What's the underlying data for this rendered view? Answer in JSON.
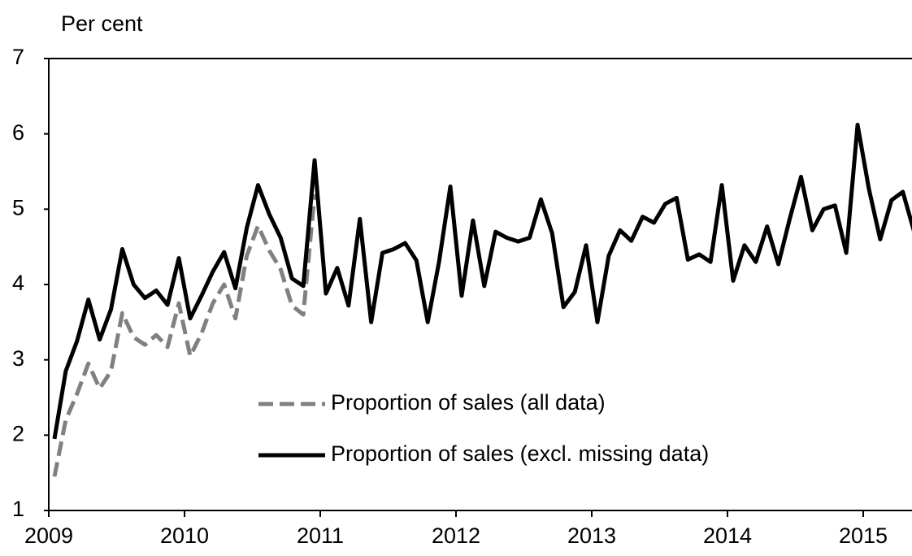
{
  "chart_data": {
    "type": "line",
    "y_label": "Per cent",
    "categories": [
      "2009",
      null,
      null,
      null,
      null,
      null,
      null,
      null,
      null,
      null,
      null,
      null,
      "2010",
      null,
      null,
      null,
      null,
      null,
      null,
      null,
      null,
      null,
      null,
      null,
      "2011",
      null,
      null,
      null,
      null,
      null,
      null,
      null,
      null,
      null,
      null,
      null,
      "2012",
      null,
      null,
      null,
      null,
      null,
      null,
      null,
      null,
      null,
      null,
      null,
      "2013",
      null,
      null,
      null,
      null,
      null,
      null,
      null,
      null,
      null,
      null,
      null,
      "2014",
      null,
      null,
      null,
      null,
      null,
      null,
      null,
      null,
      null,
      null,
      null,
      "2015",
      null,
      null,
      null,
      null
    ],
    "series": [
      {
        "name": "Proportion of sales (all data)",
        "color": "#808080",
        "dashed": true,
        "values": [
          1.45,
          2.2,
          2.55,
          2.95,
          2.62,
          2.85,
          3.62,
          3.3,
          3.2,
          3.33,
          3.17,
          3.75,
          3.05,
          3.35,
          3.75,
          4.0,
          3.55,
          4.38,
          4.78,
          4.45,
          4.2,
          3.72,
          3.6,
          5.2,
          null,
          null,
          null,
          null,
          null,
          null,
          null,
          null,
          null,
          null,
          null,
          null,
          null,
          null,
          null,
          null,
          null,
          null,
          null,
          null,
          null,
          null,
          null,
          null,
          null,
          null,
          null,
          null,
          null,
          null,
          null,
          null,
          null,
          null,
          null,
          null,
          null,
          null,
          null,
          null,
          null,
          null,
          null,
          null,
          null,
          null,
          null,
          null,
          null,
          null,
          null,
          null,
          null
        ]
      },
      {
        "name": "Proportion of sales (excl. missing data)",
        "color": "#000000",
        "dashed": false,
        "values": [
          1.95,
          2.85,
          3.25,
          3.8,
          3.27,
          3.67,
          4.47,
          4.0,
          3.82,
          3.92,
          3.73,
          4.35,
          3.55,
          3.85,
          4.17,
          4.43,
          3.95,
          4.75,
          5.32,
          4.93,
          4.62,
          4.08,
          3.98,
          5.65,
          3.88,
          4.22,
          3.72,
          4.87,
          3.5,
          4.42,
          4.47,
          4.55,
          4.32,
          3.5,
          4.3,
          5.3,
          3.85,
          4.85,
          3.98,
          4.7,
          4.62,
          4.57,
          4.62,
          5.13,
          4.68,
          3.7,
          3.9,
          4.52,
          3.5,
          4.38,
          4.72,
          4.58,
          4.9,
          4.82,
          5.07,
          5.15,
          4.33,
          4.4,
          4.3,
          5.32,
          4.05,
          4.52,
          4.3,
          4.77,
          4.27,
          4.87,
          5.43,
          4.72,
          5.0,
          5.05,
          4.42,
          6.12,
          5.27,
          4.6,
          5.12,
          5.23,
          4.7
        ]
      }
    ],
    "ylim": [
      1,
      7
    ],
    "yticks": [
      1,
      2,
      3,
      4,
      5,
      6,
      7
    ],
    "grid": false
  }
}
